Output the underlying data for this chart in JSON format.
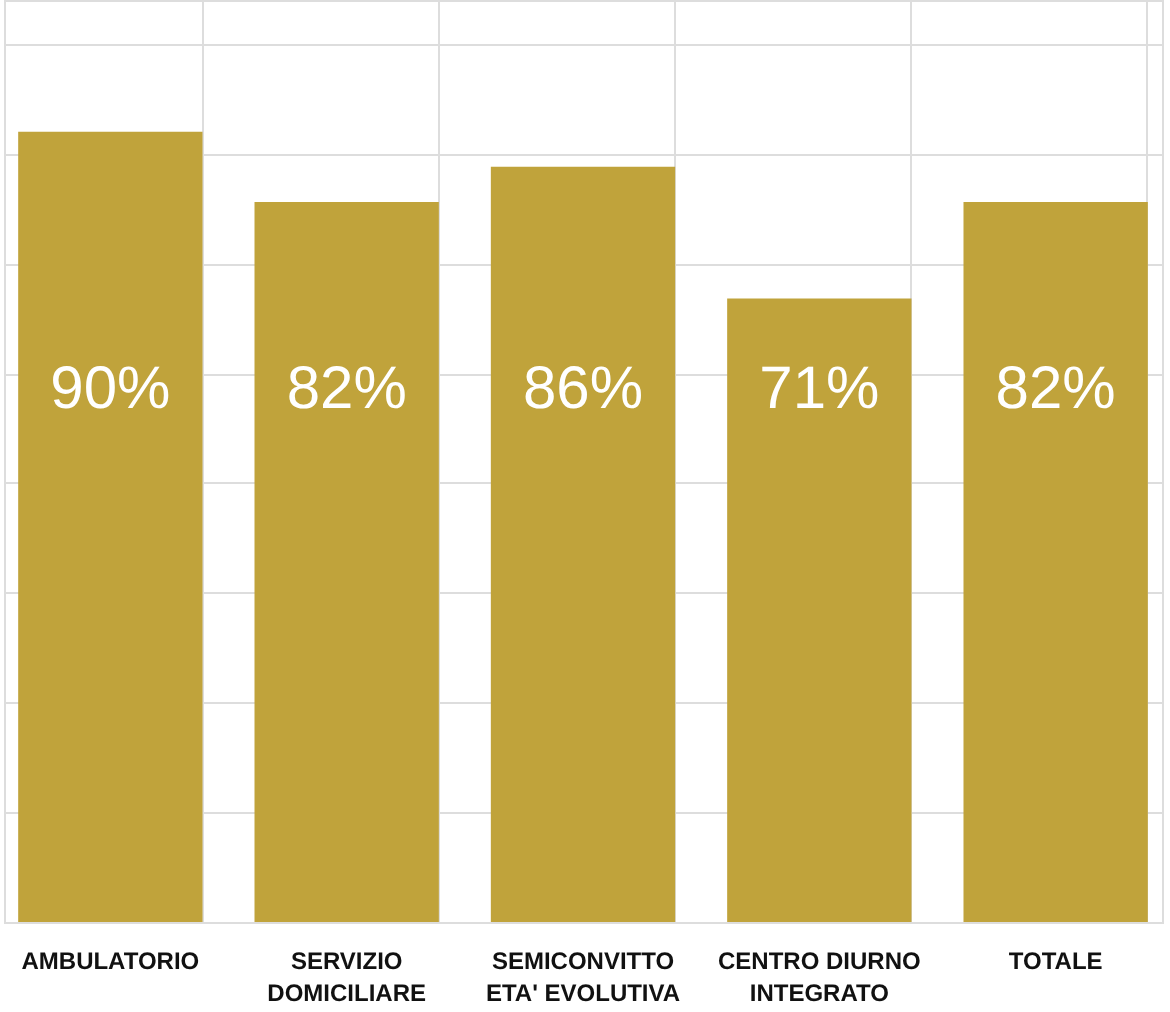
{
  "chart_data": {
    "type": "bar",
    "categories": [
      "AMBULATORIO",
      "SERVIZIO\nDOMICILIARE",
      "SEMICONVITTO\nETA' EVOLUTIVA",
      "CENTRO DIURNO\nINTEGRATO",
      "TOTALE"
    ],
    "values": [
      90,
      82,
      86,
      71,
      82
    ],
    "color": "#c0a33b",
    "data_labels": true,
    "value_labels": [
      "90%",
      "82%",
      "86%",
      "71%",
      "82%"
    ],
    "ylim": [
      0,
      105
    ],
    "yticks": [
      {
        "value": 0,
        "label": null
      },
      {
        "value": 12.5,
        "label": null
      },
      {
        "value": 25,
        "label": null
      },
      {
        "value": 37.5,
        "label": null
      },
      {
        "value": 50,
        "label": null
      },
      {
        "value": 62.5,
        "label": null
      },
      {
        "value": 75,
        "label": null
      },
      {
        "value": 87.5,
        "label": null
      },
      {
        "value": 100,
        "label": null
      }
    ],
    "tick_labels": "x",
    "grid": true
  }
}
